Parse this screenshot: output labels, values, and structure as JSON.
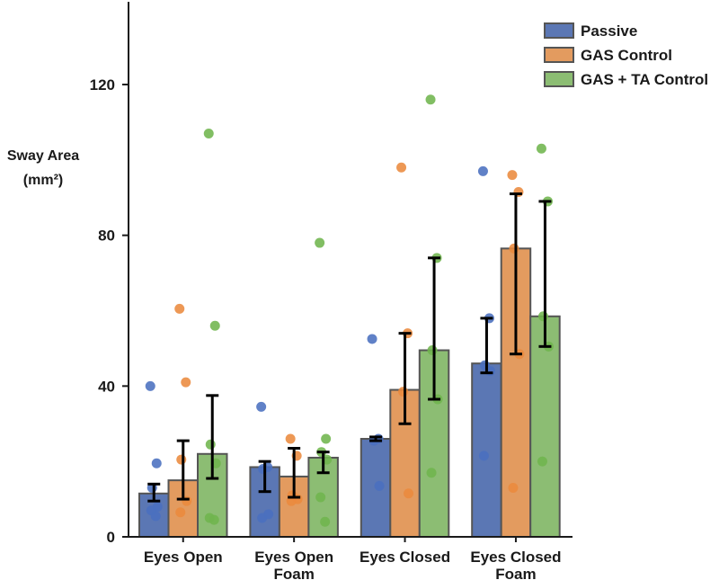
{
  "chart_data": {
    "type": "bar",
    "title": "",
    "xlabel": "",
    "ylabel": "Sway Area",
    "ylabel_unit": "(mm²)",
    "ylim": [
      0,
      143
    ],
    "yticks": [
      0,
      40,
      80,
      120
    ],
    "categories": [
      {
        "line1": "Eyes Open",
        "line2": ""
      },
      {
        "line1": "Eyes Open",
        "line2": "Foam"
      },
      {
        "line1": "Eyes Closed",
        "line2": ""
      },
      {
        "line1": "Eyes Closed",
        "line2": "Foam"
      }
    ],
    "legend_position": "top-right",
    "grid": false,
    "series": [
      {
        "name": "Passive",
        "color": "#5b77b4",
        "dot_color": "#4a6fbf",
        "values": [
          11.5,
          18.5,
          26,
          46
        ],
        "err_low": [
          9.5,
          12,
          25.5,
          43.5
        ],
        "err_high": [
          14,
          20,
          26.5,
          58
        ],
        "points": [
          [
            40,
            19.5,
            13,
            8,
            7,
            5.5
          ],
          [
            34.5,
            18.5,
            18,
            6,
            5
          ],
          [
            52.5,
            26,
            25.5,
            13.5
          ],
          [
            97,
            58,
            45.5,
            44,
            21.5
          ]
        ]
      },
      {
        "name": "GAS Control",
        "color": "#e39b5f",
        "dot_color": "#ea8a3e",
        "values": [
          15,
          16,
          39,
          76.5
        ],
        "err_low": [
          10,
          10.5,
          30,
          48.5
        ],
        "err_high": [
          25.5,
          23.5,
          54,
          91
        ],
        "points": [
          [
            60.5,
            41,
            20.5,
            9.5,
            6.5
          ],
          [
            26,
            21.5,
            11,
            10,
            9.5
          ],
          [
            98,
            54,
            38.5,
            11.5
          ],
          [
            96,
            91.5,
            76.5,
            48.5,
            13
          ]
        ]
      },
      {
        "name": "GAS + TA Control",
        "color": "#8cbd73",
        "dot_color": "#6fb54d",
        "values": [
          22,
          21,
          49.5,
          58.5
        ],
        "err_low": [
          15.5,
          17,
          36.5,
          50.5
        ],
        "err_high": [
          37.5,
          22.5,
          74,
          89
        ],
        "points": [
          [
            107,
            56,
            24.5,
            19.5,
            5,
            4.5
          ],
          [
            78,
            26,
            22.5,
            20.5,
            10.5,
            4
          ],
          [
            116,
            74,
            49.5,
            36.5,
            17
          ],
          [
            103,
            89,
            58.5,
            50.5,
            20
          ]
        ]
      }
    ]
  }
}
